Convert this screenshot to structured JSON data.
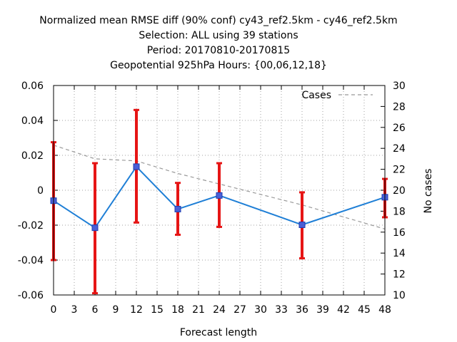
{
  "chart_data": {
    "type": "line",
    "title": [
      "Normalized mean RMSE diff (90% conf) cy43_ref2.5km - cy46_ref2.5km",
      "Selection: ALL using    39 stations",
      "Period: 20170810-20170815",
      "Geopotential 925hPa   Hours: {00,06,12,18}"
    ],
    "xlabel": "Forecast length",
    "ylabel": "",
    "y2label": "No cases",
    "xlim": [
      0,
      48
    ],
    "ylim": [
      -0.06,
      0.06
    ],
    "y2lim": [
      10,
      30
    ],
    "xticks": [
      "0",
      "3",
      "6",
      "9",
      "12",
      "15",
      "18",
      "21",
      "24",
      "27",
      "30",
      "33",
      "36",
      "39",
      "42",
      "45",
      "48"
    ],
    "yticks": [
      "-0.06",
      "-0.04",
      "-0.02",
      "0",
      "0.02",
      "0.04",
      "0.06"
    ],
    "y2ticks": [
      "10",
      "12",
      "14",
      "16",
      "18",
      "20",
      "22",
      "24",
      "26",
      "28",
      "30"
    ],
    "grid": true,
    "legend_position": "top-right",
    "series": [
      {
        "x": [
          0,
          6,
          12,
          18,
          24,
          36,
          48
        ],
        "values": [
          -0.006,
          -0.0215,
          0.0135,
          -0.0108,
          -0.003,
          -0.0198,
          -0.004
        ],
        "error_low": [
          -0.04,
          -0.059,
          -0.0185,
          -0.0255,
          -0.021,
          -0.039,
          -0.0155
        ],
        "error_high": [
          0.0275,
          0.0155,
          0.046,
          0.0042,
          0.0155,
          -0.0012,
          0.0065
        ],
        "color": "#1f7fd6",
        "marker_color": "#4a5fd6",
        "error_color": "#e61515",
        "axis": "left"
      },
      {
        "name": "Cases",
        "x": [
          0,
          6,
          12,
          18,
          24,
          36,
          48
        ],
        "values": [
          24.3,
          23,
          22.8,
          21.6,
          20.6,
          18.6,
          16.3
        ],
        "color": "#999999",
        "style": "dashed",
        "axis": "right"
      }
    ]
  }
}
